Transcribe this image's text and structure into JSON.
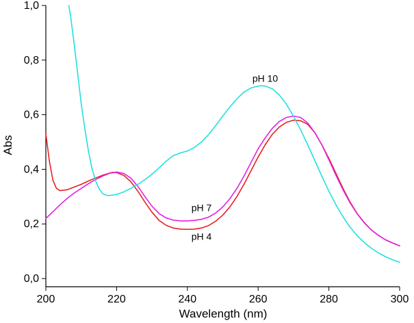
{
  "chart_data": {
    "type": "line",
    "title": "",
    "xlabel": "Wavelength (nm)",
    "ylabel": "Abs",
    "xlim": [
      200,
      300
    ],
    "ylim": [
      -0.03,
      1.0
    ],
    "grid": false,
    "legend": "none",
    "x_ticks": [
      {
        "value": 200,
        "label": "200"
      },
      {
        "value": 220,
        "label": "220"
      },
      {
        "value": 240,
        "label": "240"
      },
      {
        "value": 260,
        "label": "260"
      },
      {
        "value": 280,
        "label": "280"
      },
      {
        "value": 300,
        "label": "300"
      }
    ],
    "y_ticks": [
      {
        "value": 0.0,
        "label": "0,0"
      },
      {
        "value": 0.2,
        "label": "0,2"
      },
      {
        "value": 0.4,
        "label": "0,4"
      },
      {
        "value": 0.6,
        "label": "0,6"
      },
      {
        "value": 0.8,
        "label": "0,8"
      },
      {
        "value": 1.0,
        "label": "1,0"
      }
    ],
    "series": [
      {
        "label": "pH 4",
        "color": "#e82020",
        "points": [
          [
            200,
            0.53
          ],
          [
            201,
            0.43
          ],
          [
            202,
            0.36
          ],
          [
            203,
            0.33
          ],
          [
            204,
            0.322
          ],
          [
            206,
            0.325
          ],
          [
            208,
            0.335
          ],
          [
            210,
            0.345
          ],
          [
            212,
            0.357
          ],
          [
            214,
            0.368
          ],
          [
            216,
            0.378
          ],
          [
            218,
            0.386
          ],
          [
            219,
            0.389
          ],
          [
            220,
            0.388
          ],
          [
            222,
            0.378
          ],
          [
            224,
            0.355
          ],
          [
            226,
            0.32
          ],
          [
            228,
            0.28
          ],
          [
            230,
            0.243
          ],
          [
            232,
            0.213
          ],
          [
            234,
            0.195
          ],
          [
            236,
            0.185
          ],
          [
            238,
            0.181
          ],
          [
            240,
            0.18
          ],
          [
            242,
            0.181
          ],
          [
            244,
            0.185
          ],
          [
            246,
            0.194
          ],
          [
            248,
            0.21
          ],
          [
            250,
            0.232
          ],
          [
            252,
            0.262
          ],
          [
            254,
            0.3
          ],
          [
            256,
            0.345
          ],
          [
            258,
            0.395
          ],
          [
            260,
            0.445
          ],
          [
            262,
            0.49
          ],
          [
            264,
            0.528
          ],
          [
            266,
            0.555
          ],
          [
            268,
            0.572
          ],
          [
            270,
            0.58
          ],
          [
            272,
            0.578
          ],
          [
            274,
            0.565
          ],
          [
            276,
            0.535
          ],
          [
            278,
            0.49
          ],
          [
            280,
            0.44
          ],
          [
            282,
            0.385
          ],
          [
            284,
            0.33
          ],
          [
            286,
            0.28
          ],
          [
            288,
            0.238
          ],
          [
            290,
            0.205
          ],
          [
            292,
            0.178
          ],
          [
            294,
            0.158
          ],
          [
            296,
            0.142
          ],
          [
            298,
            0.13
          ],
          [
            300,
            0.12
          ]
        ]
      },
      {
        "label": "pH 7",
        "color": "#e020e0",
        "points": [
          [
            200,
            0.22
          ],
          [
            202,
            0.245
          ],
          [
            204,
            0.27
          ],
          [
            206,
            0.293
          ],
          [
            208,
            0.313
          ],
          [
            210,
            0.33
          ],
          [
            212,
            0.347
          ],
          [
            214,
            0.362
          ],
          [
            216,
            0.375
          ],
          [
            218,
            0.385
          ],
          [
            220,
            0.39
          ],
          [
            222,
            0.385
          ],
          [
            224,
            0.368
          ],
          [
            226,
            0.338
          ],
          [
            228,
            0.3
          ],
          [
            230,
            0.265
          ],
          [
            232,
            0.238
          ],
          [
            234,
            0.222
          ],
          [
            236,
            0.214
          ],
          [
            238,
            0.211
          ],
          [
            240,
            0.211
          ],
          [
            242,
            0.213
          ],
          [
            244,
            0.217
          ],
          [
            246,
            0.225
          ],
          [
            248,
            0.24
          ],
          [
            250,
            0.262
          ],
          [
            252,
            0.292
          ],
          [
            254,
            0.33
          ],
          [
            256,
            0.375
          ],
          [
            258,
            0.425
          ],
          [
            260,
            0.475
          ],
          [
            262,
            0.515
          ],
          [
            264,
            0.55
          ],
          [
            266,
            0.575
          ],
          [
            268,
            0.59
          ],
          [
            270,
            0.595
          ],
          [
            272,
            0.59
          ],
          [
            274,
            0.57
          ],
          [
            276,
            0.535
          ],
          [
            278,
            0.49
          ],
          [
            280,
            0.435
          ],
          [
            282,
            0.378
          ],
          [
            284,
            0.325
          ],
          [
            286,
            0.277
          ],
          [
            288,
            0.237
          ],
          [
            290,
            0.204
          ],
          [
            292,
            0.178
          ],
          [
            294,
            0.158
          ],
          [
            296,
            0.142
          ],
          [
            298,
            0.13
          ],
          [
            300,
            0.12
          ]
        ]
      },
      {
        "label": "pH 10",
        "color": "#20e0e0",
        "points": [
          [
            206.5,
            1.0
          ],
          [
            207,
            0.96
          ],
          [
            208,
            0.86
          ],
          [
            209,
            0.75
          ],
          [
            210,
            0.64
          ],
          [
            211,
            0.55
          ],
          [
            212,
            0.47
          ],
          [
            213,
            0.405
          ],
          [
            214,
            0.36
          ],
          [
            215,
            0.33
          ],
          [
            216,
            0.312
          ],
          [
            217,
            0.305
          ],
          [
            218,
            0.304
          ],
          [
            220,
            0.308
          ],
          [
            222,
            0.317
          ],
          [
            224,
            0.33
          ],
          [
            226,
            0.345
          ],
          [
            228,
            0.362
          ],
          [
            230,
            0.382
          ],
          [
            232,
            0.405
          ],
          [
            234,
            0.43
          ],
          [
            236,
            0.45
          ],
          [
            238,
            0.46
          ],
          [
            240,
            0.467
          ],
          [
            242,
            0.48
          ],
          [
            244,
            0.5
          ],
          [
            246,
            0.527
          ],
          [
            248,
            0.56
          ],
          [
            250,
            0.595
          ],
          [
            252,
            0.628
          ],
          [
            254,
            0.658
          ],
          [
            256,
            0.683
          ],
          [
            258,
            0.698
          ],
          [
            260,
            0.705
          ],
          [
            261,
            0.706
          ],
          [
            262,
            0.705
          ],
          [
            264,
            0.695
          ],
          [
            266,
            0.672
          ],
          [
            268,
            0.638
          ],
          [
            270,
            0.595
          ],
          [
            272,
            0.545
          ],
          [
            274,
            0.49
          ],
          [
            276,
            0.433
          ],
          [
            278,
            0.375
          ],
          [
            280,
            0.32
          ],
          [
            282,
            0.27
          ],
          [
            284,
            0.226
          ],
          [
            286,
            0.188
          ],
          [
            288,
            0.157
          ],
          [
            290,
            0.132
          ],
          [
            292,
            0.111
          ],
          [
            294,
            0.094
          ],
          [
            296,
            0.08
          ],
          [
            298,
            0.069
          ],
          [
            300,
            0.06
          ]
        ]
      }
    ],
    "annotations": [
      {
        "text": "pH 10",
        "x": 262,
        "y": 0.72
      },
      {
        "text": "pH 7",
        "x": 244,
        "y": 0.247
      },
      {
        "text": "pH 4",
        "x": 244,
        "y": 0.142
      }
    ]
  }
}
